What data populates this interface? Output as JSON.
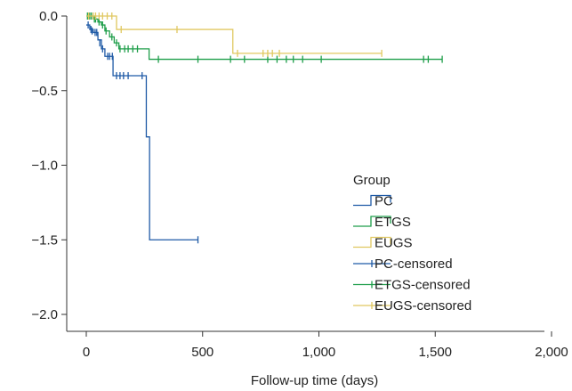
{
  "chart_data": {
    "type": "line",
    "subtype": "kaplan-meier-log-survival",
    "title": "",
    "xlabel": "Follow-up time (days)",
    "ylabel": "",
    "xlim": [
      0,
      2000
    ],
    "ylim": [
      -2.0,
      0.0
    ],
    "x_ticks": [
      0,
      500,
      1000,
      1500,
      2000
    ],
    "x_tick_labels": [
      "0",
      "500",
      "1,000",
      "1,500",
      "2,000"
    ],
    "y_ticks": [
      0.0,
      -0.5,
      -1.0,
      -1.5,
      -2.0
    ],
    "y_tick_labels": [
      "0.0",
      "−0.5",
      "−1.0",
      "−1.5",
      "−2.0"
    ],
    "grid": false,
    "legend": {
      "title": "Group",
      "placement": "bottom-right",
      "entries": [
        {
          "label": "PC",
          "kind": "step",
          "color": "#1f5aa6"
        },
        {
          "label": "ETGS",
          "kind": "step",
          "color": "#1e9e4a"
        },
        {
          "label": "EUGS",
          "kind": "step",
          "color": "#e0c860"
        },
        {
          "label": "PC-censored",
          "kind": "censor",
          "color": "#1f5aa6"
        },
        {
          "label": "ETGS-censored",
          "kind": "censor",
          "color": "#1e9e4a"
        },
        {
          "label": "EUGS-censored",
          "kind": "censor",
          "color": "#e0c860"
        }
      ]
    },
    "series": [
      {
        "name": "PC",
        "color": "#1f5aa6",
        "steps": [
          [
            0,
            -0.06
          ],
          [
            15,
            -0.09
          ],
          [
            30,
            -0.11
          ],
          [
            50,
            -0.16
          ],
          [
            65,
            -0.22
          ],
          [
            80,
            -0.27
          ],
          [
            115,
            -0.4
          ],
          [
            250,
            -0.4
          ],
          [
            258,
            -0.81
          ],
          [
            272,
            -1.5
          ],
          [
            480,
            -1.5
          ]
        ],
        "censored": [
          [
            8,
            -0.06
          ],
          [
            20,
            -0.09
          ],
          [
            25,
            -0.1
          ],
          [
            38,
            -0.11
          ],
          [
            45,
            -0.11
          ],
          [
            58,
            -0.18
          ],
          [
            70,
            -0.22
          ],
          [
            92,
            -0.27
          ],
          [
            100,
            -0.27
          ],
          [
            112,
            -0.27
          ],
          [
            130,
            -0.4
          ],
          [
            145,
            -0.4
          ],
          [
            160,
            -0.4
          ],
          [
            180,
            -0.4
          ],
          [
            240,
            -0.4
          ],
          [
            480,
            -1.5
          ]
        ]
      },
      {
        "name": "ETGS",
        "color": "#1e9e4a",
        "steps": [
          [
            0,
            0.0
          ],
          [
            30,
            -0.02
          ],
          [
            50,
            -0.04
          ],
          [
            65,
            -0.06
          ],
          [
            80,
            -0.1
          ],
          [
            100,
            -0.14
          ],
          [
            120,
            -0.18
          ],
          [
            140,
            -0.22
          ],
          [
            265,
            -0.22
          ],
          [
            270,
            -0.29
          ],
          [
            1530,
            -0.29
          ]
        ],
        "censored": [
          [
            5,
            0.0
          ],
          [
            15,
            0.0
          ],
          [
            22,
            0.0
          ],
          [
            35,
            -0.02
          ],
          [
            40,
            -0.02
          ],
          [
            55,
            -0.04
          ],
          [
            70,
            -0.06
          ],
          [
            85,
            -0.1
          ],
          [
            110,
            -0.14
          ],
          [
            130,
            -0.18
          ],
          [
            145,
            -0.22
          ],
          [
            165,
            -0.22
          ],
          [
            180,
            -0.22
          ],
          [
            200,
            -0.22
          ],
          [
            220,
            -0.22
          ],
          [
            310,
            -0.29
          ],
          [
            480,
            -0.29
          ],
          [
            620,
            -0.29
          ],
          [
            680,
            -0.29
          ],
          [
            780,
            -0.29
          ],
          [
            820,
            -0.29
          ],
          [
            860,
            -0.29
          ],
          [
            890,
            -0.29
          ],
          [
            930,
            -0.29
          ],
          [
            1010,
            -0.29
          ],
          [
            1450,
            -0.29
          ],
          [
            1470,
            -0.29
          ],
          [
            1530,
            -0.29
          ]
        ]
      },
      {
        "name": "EUGS",
        "color": "#e0c860",
        "steps": [
          [
            0,
            0.0
          ],
          [
            125,
            0.0
          ],
          [
            130,
            -0.09
          ],
          [
            625,
            -0.09
          ],
          [
            630,
            -0.25
          ],
          [
            1270,
            -0.25
          ]
        ],
        "censored": [
          [
            10,
            0.0
          ],
          [
            30,
            0.0
          ],
          [
            40,
            0.0
          ],
          [
            55,
            0.0
          ],
          [
            70,
            0.0
          ],
          [
            90,
            0.0
          ],
          [
            110,
            0.0
          ],
          [
            150,
            -0.09
          ],
          [
            390,
            -0.09
          ],
          [
            650,
            -0.25
          ],
          [
            760,
            -0.25
          ],
          [
            780,
            -0.25
          ],
          [
            800,
            -0.25
          ],
          [
            830,
            -0.25
          ],
          [
            1270,
            -0.25
          ]
        ]
      }
    ]
  }
}
